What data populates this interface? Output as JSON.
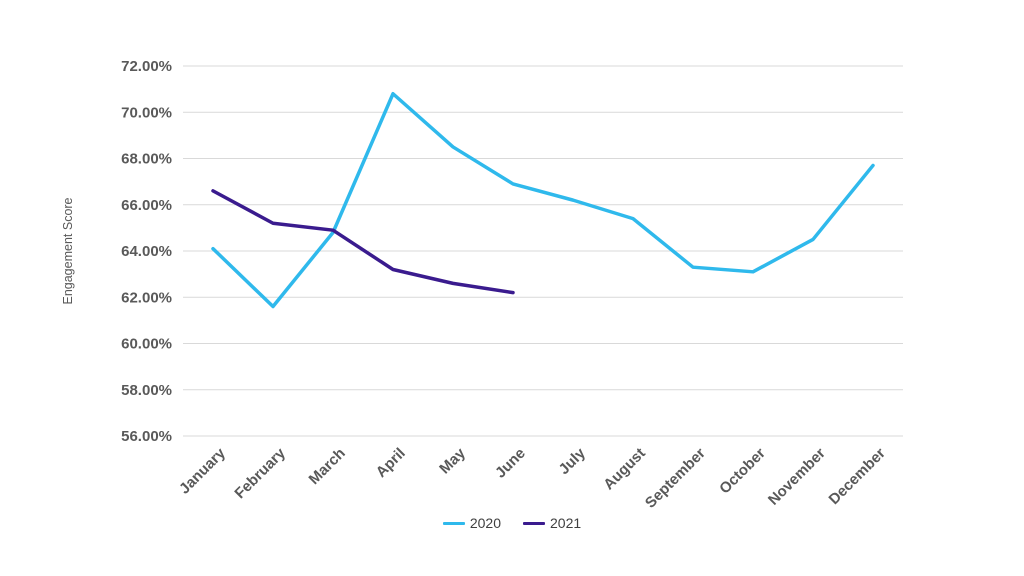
{
  "chart_data": {
    "type": "line",
    "title": "",
    "xlabel": "",
    "ylabel": "Engagement Score",
    "categories": [
      "January",
      "February",
      "March",
      "April",
      "May",
      "June",
      "July",
      "August",
      "September",
      "October",
      "November",
      "December"
    ],
    "series": [
      {
        "name": "2020",
        "color": "#2FB9EC",
        "values": [
          64.1,
          61.6,
          64.8,
          70.8,
          68.5,
          66.9,
          66.2,
          65.4,
          63.3,
          63.1,
          64.5,
          67.7
        ]
      },
      {
        "name": "2021",
        "color": "#3A1B8E",
        "values": [
          66.6,
          65.2,
          64.9,
          63.2,
          62.6,
          62.2
        ]
      }
    ],
    "ylim": [
      56,
      72
    ],
    "y_tick_step": 2,
    "y_ticks": [
      "72.00%",
      "70.00%",
      "68.00%",
      "66.00%",
      "64.00%",
      "62.00%",
      "60.00%",
      "58.00%",
      "56.00%"
    ],
    "grid": "horizontal",
    "legend_position": "bottom-center",
    "colors": {
      "background": "#ffffff",
      "gridline": "#d9d9d9",
      "tick_text": "#595959",
      "axis_title_text": "#595959",
      "legend_text": "#404040"
    }
  }
}
